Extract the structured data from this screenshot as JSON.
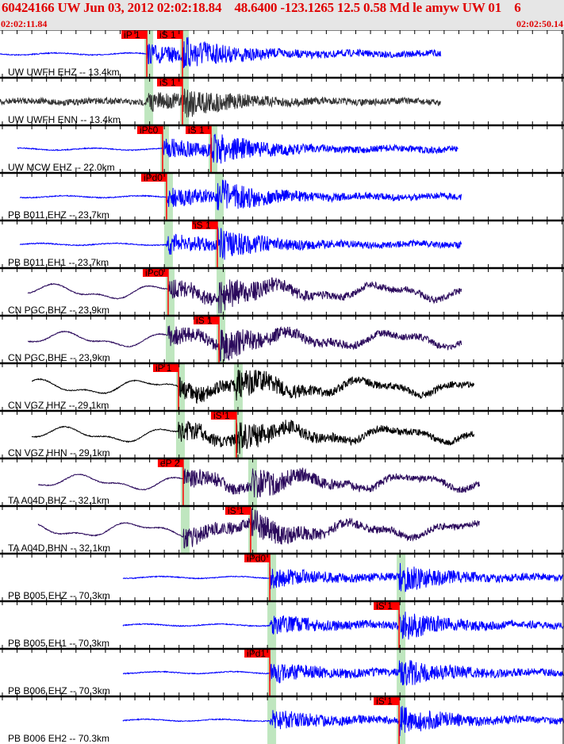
{
  "header": {
    "title": "60424166 UW Jun 03, 2012 02:02:18.84    48.6400 -123.1265 12.5 0.58 Md le amyw UW 01    6",
    "start_time": "02:02:11.84",
    "end_time": "02:02:50.14"
  },
  "colors": {
    "header_text": "#e00000",
    "pick": "#ff0000",
    "pick_window": "#bfe6bf",
    "blue": "#0000ff",
    "gray": "#333333",
    "purple": "#2b0a5c",
    "black": "#000000"
  },
  "traces": [
    {
      "label": "UW UWFH EHZ -- 13.4km",
      "station": "UWFH",
      "color": "blue",
      "start": "02:02:11.84",
      "end": "02:02:41.79",
      "picks": [
        {
          "label": "iP 1",
          "time": "02:02:21.81"
        },
        {
          "label": "iS 1",
          "time": "02:02:24.23"
        }
      ]
    },
    {
      "label": "UW UWFH ENN -- 13.4km",
      "station": "UWFH",
      "color": "gray",
      "start": "02:02:11.84",
      "end": "02:02:41.79",
      "picks": [
        {
          "label": "iS 1",
          "time": "02:02:24.23"
        }
      ]
    },
    {
      "label": "UW MCW EHZ -- 22.0km",
      "station": "MCW",
      "color": "blue",
      "start": "02:02:13.03",
      "end": "02:02:42.98",
      "picks": [
        {
          "label": "iPc0",
          "time": "02:02:22.88"
        },
        {
          "label": "iS 1",
          "time": "02:02:26.17"
        }
      ]
    },
    {
      "label": "PB B011 EHZ -- 23.7km",
      "station": "B011",
      "color": "blue",
      "start": "02:02:13.19",
      "end": "02:02:43.19",
      "picks": [
        {
          "label": "iPd0",
          "time": "02:02:23.15"
        }
      ]
    },
    {
      "label": "PB B011 EH1 -- 23.7km",
      "station": "B011",
      "color": "blue",
      "start": "02:02:13.19",
      "end": "02:02:43.19",
      "picks": [
        {
          "label": "iS 1",
          "time": "02:02:26.60"
        }
      ]
    },
    {
      "label": "CN PGC BHZ -- 23.9km",
      "station": "PGC",
      "color": "purple",
      "start": "02:02:13.73",
      "end": "02:02:43.19",
      "picks": [
        {
          "label": "iPc0",
          "time": "02:02:23.26"
        }
      ]
    },
    {
      "label": "CN PGC BHE -- 23.9km",
      "station": "PGC",
      "color": "purple",
      "start": "02:02:13.73",
      "end": "02:02:43.19",
      "picks": [
        {
          "label": "iS 1",
          "time": "02:02:26.71"
        }
      ]
    },
    {
      "label": "CN VGZ HHZ -- 29.1km",
      "station": "VGZ",
      "color": "black",
      "start": "02:02:14.00",
      "end": "02:02:44.05",
      "picks": [
        {
          "label": "iP 1",
          "time": "02:02:23.96"
        }
      ]
    },
    {
      "label": "CN VGZ HHN -- 29.1km",
      "station": "VGZ",
      "color": "black",
      "start": "02:02:14.00",
      "end": "02:02:44.05",
      "picks": [
        {
          "label": "iS 1",
          "time": "02:02:27.89"
        }
      ]
    },
    {
      "label": "TA A04D BHZ -- 32.1km",
      "station": "A04D",
      "color": "purple",
      "start": "02:02:14.43",
      "end": "02:02:44.43",
      "picks": [
        {
          "label": "eP 2",
          "time": "02:02:24.28"
        }
      ]
    },
    {
      "label": "TA A04D BHN -- 32.1km",
      "station": "A04D",
      "color": "purple",
      "start": "02:02:14.43",
      "end": "02:02:44.43",
      "picks": [
        {
          "label": "iS 1",
          "time": "02:02:28.86"
        }
      ]
    },
    {
      "label": "PB B005 EHZ -- 70.3km",
      "station": "B005",
      "color": "blue",
      "start": "02:02:20.19",
      "end": "02:02:50.14",
      "picks": [
        {
          "label": "iPd0",
          "time": "02:02:30.16"
        }
      ]
    },
    {
      "label": "PB B005 EH1 -- 70.3km",
      "station": "B005",
      "color": "blue",
      "start": "02:02:20.19",
      "end": "02:02:50.14",
      "picks": [
        {
          "label": "iS 1",
          "time": "02:02:38.94"
        }
      ]
    },
    {
      "label": "PB B006 EHZ -- 70.3km",
      "station": "B006",
      "color": "blue",
      "start": "02:02:20.19",
      "end": "02:02:50.14",
      "picks": [
        {
          "label": "iPd1",
          "time": "02:02:30.16"
        }
      ]
    },
    {
      "label": "PB B006 EH2 -- 70.3km",
      "station": "B006",
      "color": "blue",
      "start": "02:02:20.19",
      "end": "02:02:50.14",
      "picks": [
        {
          "label": "iS 1",
          "time": "02:02:38.94"
        }
      ]
    }
  ]
}
